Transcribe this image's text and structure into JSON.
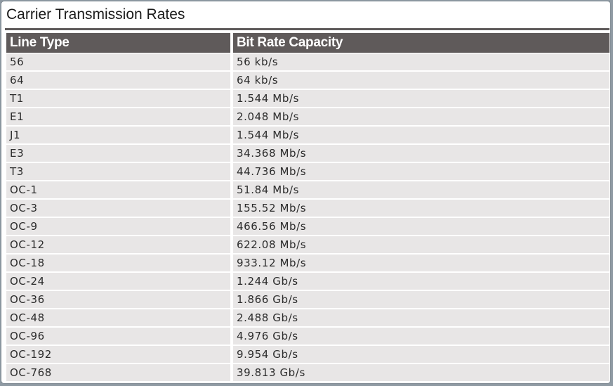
{
  "title": "Carrier Transmission Rates",
  "columns": [
    "Line Type",
    "Bit Rate Capacity"
  ],
  "rows": [
    [
      "56",
      "56 kb/s"
    ],
    [
      "64",
      "64 kb/s"
    ],
    [
      "T1",
      "1.544 Mb/s"
    ],
    [
      "E1",
      "2.048 Mb/s"
    ],
    [
      "J1",
      "1.544 Mb/s"
    ],
    [
      "E3",
      "34.368 Mb/s"
    ],
    [
      "T3",
      "44.736 Mb/s"
    ],
    [
      "OC-1",
      "51.84 Mb/s"
    ],
    [
      "OC-3",
      "155.52 Mb/s"
    ],
    [
      "OC-9",
      "466.56 Mb/s"
    ],
    [
      "OC-12",
      "622.08 Mb/s"
    ],
    [
      "OC-18",
      "933.12 Mb/s"
    ],
    [
      "OC-24",
      "1.244 Gb/s"
    ],
    [
      "OC-36",
      "1.866 Gb/s"
    ],
    [
      "OC-48",
      "2.488 Gb/s"
    ],
    [
      "OC-96",
      "4.976 Gb/s"
    ],
    [
      "OC-192",
      "9.954 Gb/s"
    ],
    [
      "OC-768",
      "39.813 Gb/s"
    ]
  ],
  "colors": {
    "header_bg": "#5f5a5a",
    "header_text": "#ffffff",
    "row_bg": "#e8e6e6",
    "rule": "#5f5b5b"
  }
}
